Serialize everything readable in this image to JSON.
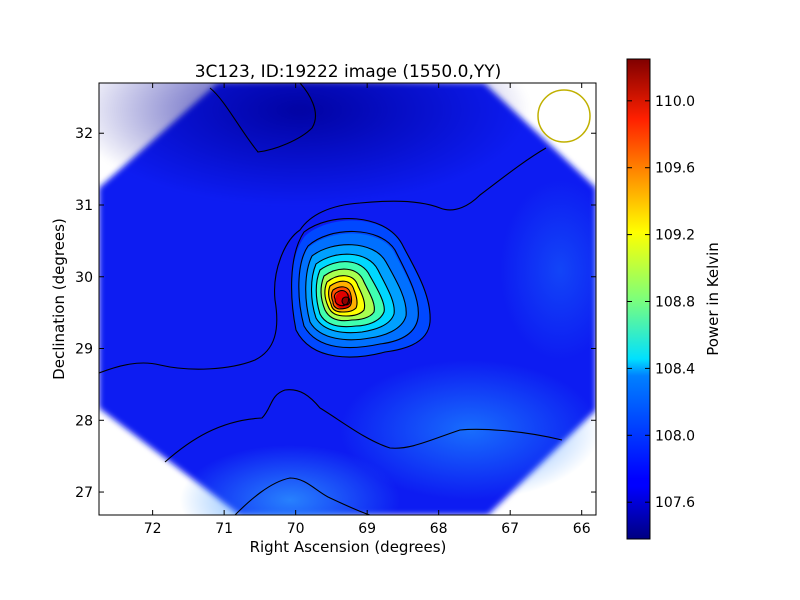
{
  "chart_data": {
    "type": "heatmap",
    "title": "3C123, ID:19222 image (1550.0,YY)",
    "xlabel": "Right Ascension (degrees)",
    "ylabel": "Declination (degrees)",
    "xlim": [
      72.75,
      65.8
    ],
    "ylim": [
      26.68,
      32.7
    ],
    "x_ticks": [
      72,
      71,
      70,
      69,
      68,
      67,
      66
    ],
    "y_ticks": [
      27,
      28,
      29,
      30,
      31,
      32
    ],
    "colorbar": {
      "label": "Power in Kelvin",
      "range": [
        107.38,
        110.25
      ],
      "ticks": [
        "107.6",
        "108.0",
        "108.4",
        "108.8",
        "109.2",
        "109.6",
        "110.0"
      ],
      "colormap": "jet"
    },
    "field_background": 107.72,
    "peak": {
      "ra": 69.25,
      "dec": 29.65,
      "value": 110.2
    },
    "beam_circle_color": "#c0b000",
    "grid": false
  }
}
